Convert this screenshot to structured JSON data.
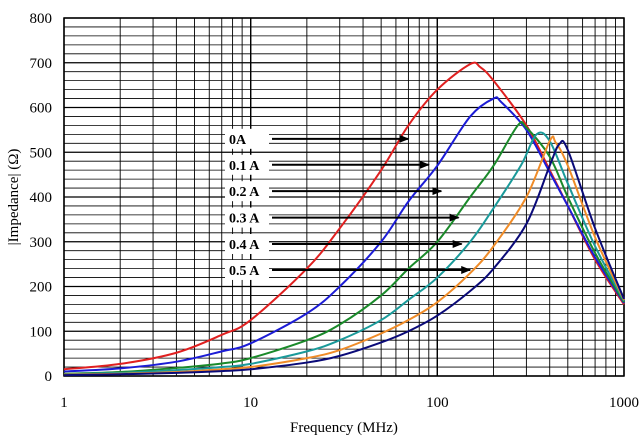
{
  "chart_data": {
    "type": "line",
    "title": "",
    "xlabel": "Frequency (MHz)",
    "ylabel": "|Impedance| (Ω)",
    "x_scale": "log",
    "xlim": [
      1,
      1000
    ],
    "ylim": [
      0,
      800
    ],
    "x_ticks": [
      1,
      10,
      100,
      1000
    ],
    "x_tick_labels": [
      "1",
      "10",
      "100",
      "1000"
    ],
    "y_ticks": [
      0,
      100,
      200,
      300,
      400,
      500,
      600,
      700,
      800
    ],
    "y_tick_labels": [
      "0",
      "100",
      "200",
      "300",
      "400",
      "500",
      "600",
      "700",
      "800"
    ],
    "grid": "on (log minor vertical lines, major and minor horizontal lines)",
    "legend": "annotation arrows inside plot, left-center",
    "series": [
      {
        "name": "0A",
        "color": "#e02020",
        "points": [
          [
            1,
            15
          ],
          [
            2,
            27
          ],
          [
            4,
            52
          ],
          [
            7,
            92
          ],
          [
            10,
            125
          ],
          [
            20,
            240
          ],
          [
            30,
            330
          ],
          [
            50,
            460
          ],
          [
            70,
            560
          ],
          [
            100,
            640
          ],
          [
            150,
            697
          ],
          [
            170,
            690
          ],
          [
            200,
            660
          ],
          [
            300,
            560
          ],
          [
            400,
            460
          ],
          [
            500,
            380
          ],
          [
            700,
            260
          ],
          [
            1000,
            160
          ]
        ]
      },
      {
        "name": "0.1 A",
        "color": "#1c1cd6",
        "points": [
          [
            1,
            10
          ],
          [
            2,
            17
          ],
          [
            4,
            32
          ],
          [
            7,
            55
          ],
          [
            10,
            73
          ],
          [
            20,
            140
          ],
          [
            30,
            200
          ],
          [
            50,
            300
          ],
          [
            70,
            390
          ],
          [
            100,
            470
          ],
          [
            150,
            580
          ],
          [
            200,
            620
          ],
          [
            220,
            612
          ],
          [
            300,
            550
          ],
          [
            400,
            455
          ],
          [
            500,
            380
          ],
          [
            700,
            265
          ],
          [
            1000,
            163
          ]
        ]
      },
      {
        "name": "0.2 A",
        "color": "#1a8a2a",
        "points": [
          [
            1,
            5
          ],
          [
            2,
            9
          ],
          [
            4,
            18
          ],
          [
            7,
            28
          ],
          [
            10,
            40
          ],
          [
            20,
            80
          ],
          [
            30,
            115
          ],
          [
            50,
            180
          ],
          [
            70,
            240
          ],
          [
            100,
            300
          ],
          [
            150,
            400
          ],
          [
            200,
            470
          ],
          [
            270,
            560
          ],
          [
            300,
            555
          ],
          [
            400,
            490
          ],
          [
            500,
            400
          ],
          [
            700,
            275
          ],
          [
            1000,
            165
          ]
        ]
      },
      {
        "name": "0.3 A",
        "color": "#1a9a9a",
        "points": [
          [
            1,
            4
          ],
          [
            2,
            7
          ],
          [
            4,
            13
          ],
          [
            7,
            20
          ],
          [
            10,
            27
          ],
          [
            20,
            55
          ],
          [
            30,
            80
          ],
          [
            50,
            125
          ],
          [
            70,
            170
          ],
          [
            100,
            220
          ],
          [
            150,
            300
          ],
          [
            200,
            375
          ],
          [
            280,
            470
          ],
          [
            340,
            540
          ],
          [
            400,
            525
          ],
          [
            500,
            430
          ],
          [
            700,
            290
          ],
          [
            1000,
            168
          ]
        ]
      },
      {
        "name": "0.4 A",
        "color": "#f08c28",
        "points": [
          [
            1,
            3
          ],
          [
            2,
            5
          ],
          [
            4,
            9
          ],
          [
            7,
            15
          ],
          [
            10,
            20
          ],
          [
            20,
            40
          ],
          [
            30,
            58
          ],
          [
            50,
            95
          ],
          [
            70,
            125
          ],
          [
            100,
            165
          ],
          [
            150,
            230
          ],
          [
            200,
            290
          ],
          [
            300,
            400
          ],
          [
            400,
            525
          ],
          [
            430,
            522
          ],
          [
            500,
            470
          ],
          [
            700,
            310
          ],
          [
            1000,
            170
          ]
        ]
      },
      {
        "name": "0.5 A",
        "color": "#0a0a78",
        "points": [
          [
            1,
            2
          ],
          [
            2,
            4
          ],
          [
            4,
            7
          ],
          [
            7,
            11
          ],
          [
            10,
            15
          ],
          [
            20,
            30
          ],
          [
            30,
            45
          ],
          [
            50,
            75
          ],
          [
            70,
            100
          ],
          [
            100,
            135
          ],
          [
            150,
            190
          ],
          [
            200,
            240
          ],
          [
            300,
            340
          ],
          [
            400,
            470
          ],
          [
            450,
            518
          ],
          [
            500,
            505
          ],
          [
            700,
            330
          ],
          [
            1000,
            172
          ]
        ]
      }
    ],
    "annotations": [
      {
        "label": "0A",
        "arrow_to_x": 70,
        "y": 530
      },
      {
        "label": "0.1 A",
        "arrow_to_x": 90,
        "y": 472
      },
      {
        "label": "0.2 A",
        "arrow_to_x": 105,
        "y": 413
      },
      {
        "label": "0.3 A",
        "arrow_to_x": 130,
        "y": 354
      },
      {
        "label": "0.4 A",
        "arrow_to_x": 135,
        "y": 295
      },
      {
        "label": "0.5 A",
        "arrow_to_x": 150,
        "y": 237
      }
    ]
  }
}
